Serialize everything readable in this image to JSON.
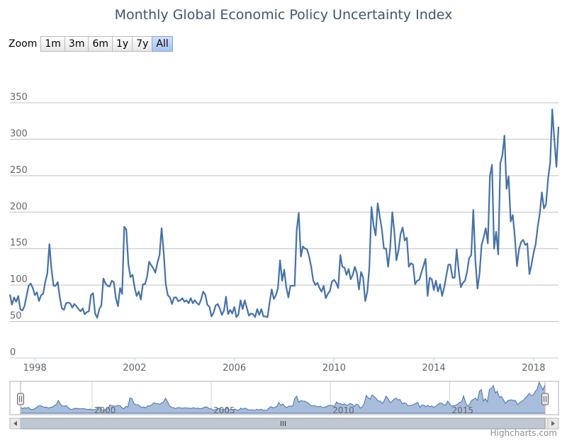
{
  "title": "Monthly Global Economic Policy Uncertainty Index",
  "zoom": {
    "label": "Zoom",
    "buttons": [
      "1m",
      "3m",
      "6m",
      "1y",
      "7y",
      "All"
    ],
    "selected": "All"
  },
  "credits": "Highcharts.com",
  "colors": {
    "series": "#4572a7",
    "navigator_fill": "#a8bddc",
    "grid": "#c0c0c0",
    "axis_text": "#666666",
    "title": "#3e576f"
  },
  "chart_data": {
    "type": "line",
    "title": "Monthly Global Economic Policy Uncertainty Index",
    "xlabel": "",
    "ylabel": "",
    "ylim": [
      0,
      350
    ],
    "yticks": [
      0,
      50,
      100,
      150,
      200,
      250,
      300,
      350
    ],
    "xlim": [
      "1997-01",
      "2019-01"
    ],
    "xticks": [
      {
        "label": "1998",
        "value": "1998-01"
      },
      {
        "label": "2002",
        "value": "2002-01"
      },
      {
        "label": "2006",
        "value": "2006-01"
      },
      {
        "label": "2010",
        "value": "2010-01"
      },
      {
        "label": "2014",
        "value": "2014-01"
      },
      {
        "label": "2018",
        "value": "2018-01"
      }
    ],
    "grid": true,
    "navigator_ticks": [
      {
        "label": "2000",
        "value": "2000-01"
      },
      {
        "label": "2005",
        "value": "2005-01"
      },
      {
        "label": "2010",
        "value": "2010-01"
      },
      {
        "label": "2015",
        "value": "2015-01"
      }
    ],
    "series": [
      {
        "start": "1997-01",
        "values": [
          87,
          73,
          83,
          77,
          85,
          67,
          65,
          71,
          85,
          99,
          102,
          96,
          86,
          90,
          78,
          86,
          88,
          104,
          116,
          156,
          122,
          99,
          99,
          104,
          83,
          68,
          66,
          75,
          76,
          75,
          69,
          74,
          71,
          67,
          64,
          68,
          60,
          63,
          64,
          86,
          89,
          61,
          55,
          67,
          72,
          109,
          102,
          99,
          98,
          106,
          104,
          82,
          71,
          96,
          88,
          180,
          176,
          129,
          111,
          114,
          97,
          85,
          91,
          80,
          101,
          101,
          111,
          132,
          127,
          123,
          117,
          131,
          141,
          178,
          144,
          101,
          86,
          83,
          74,
          83,
          83,
          78,
          79,
          82,
          77,
          79,
          75,
          82,
          75,
          79,
          75,
          73,
          80,
          91,
          87,
          73,
          70,
          57,
          62,
          72,
          74,
          68,
          59,
          65,
          84,
          60,
          66,
          61,
          70,
          56,
          60,
          79,
          67,
          79,
          69,
          58,
          61,
          60,
          56,
          67,
          59,
          67,
          57,
          57,
          56,
          77,
          94,
          81,
          86,
          96,
          134,
          106,
          121,
          97,
          83,
          99,
          99,
          99,
          175,
          199,
          139,
          153,
          150,
          149,
          139,
          125,
          106,
          100,
          103,
          96,
          91,
          99,
          82,
          88,
          92,
          105,
          107,
          103,
          96,
          141,
          125,
          124,
          114,
          122,
          108,
          114,
          125,
          116,
          94,
          118,
          110,
          78,
          91,
          125,
          207,
          182,
          168,
          212,
          194,
          176,
          150,
          150,
          125,
          151,
          200,
          173,
          134,
          148,
          170,
          179,
          161,
          165,
          125,
          130,
          128,
          101,
          106,
          107,
          117,
          126,
          136,
          85,
          110,
          108,
          93,
          106,
          91,
          101,
          85,
          97,
          113,
          128,
          128,
          110,
          110,
          149,
          119,
          97,
          103,
          106,
          118,
          137,
          141,
          203,
          134,
          95,
          116,
          155,
          166,
          178,
          157,
          250,
          265,
          150,
          173,
          142,
          267,
          278,
          305,
          232,
          249,
          187,
          196,
          166,
          126,
          149,
          159,
          162,
          155,
          157,
          115,
          128,
          144,
          156,
          180,
          198,
          227,
          205,
          211,
          246,
          268,
          341,
          300,
          262,
          317
        ]
      }
    ]
  }
}
